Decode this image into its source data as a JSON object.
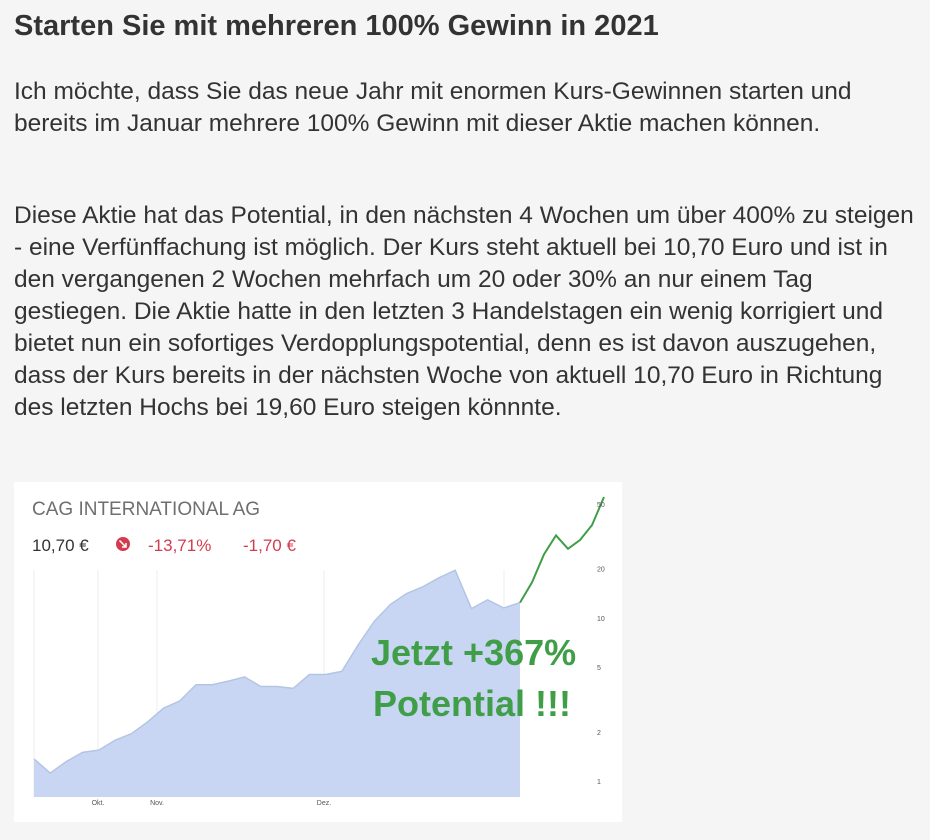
{
  "article": {
    "title": "Starten Sie mit mehreren 100% Gewinn in 2021",
    "paragraphs": [
      "Ich möchte, dass Sie das neue Jahr mit enormen Kurs-Gewinnen starten und bereits im Januar mehrere 100% Gewinn mit dieser Aktie machen können.",
      "Diese Aktie hat das Potential, in den nächsten 4 Wochen um über 400% zu steigen - eine Verfünffachung ist möglich. Der Kurs steht aktuell bei 10,70 Euro und ist in den vergangenen 2 Wochen mehrfach um 20 oder 30% an nur einem Tag gestiegen. Die Aktie hatte in den letzten 3 Handelstagen ein wenig korrigiert und bietet nun ein sofortiges Verdopplungspotential, denn es ist davon auszugehen, dass der Kurs bereits in der nächsten Woche von aktuell 10,70 Euro in Richtung des letzten Hochs bei 19,60 Euro steigen könnnte."
    ]
  },
  "chart_data": {
    "type": "area",
    "title": "CAG INTERNATIONAL AG",
    "price": "10,70 €",
    "change_pct": "-13,71%",
    "change_abs": "-1,70 €",
    "annotation_line1": "Jetzt +367%",
    "annotation_line2": "Potential !!!",
    "y_scale": "log",
    "ylim": [
      0.8,
      55
    ],
    "y_ticks": [
      1,
      2,
      5,
      10,
      20,
      50
    ],
    "x_ticks": [
      "Okt.",
      "Nov.",
      "Dez."
    ],
    "grid": true,
    "legend": "none",
    "colors": {
      "area_fill": "#c9d6f3",
      "area_line": "#b3c5e4",
      "projection_line": "#3f9e47",
      "annotation": "#3f9e47",
      "negative": "#d33b4f",
      "title": "#6f6f6f"
    },
    "series": [
      {
        "values": [
          1.37,
          1.12,
          1.32,
          1.5,
          1.55,
          1.78,
          1.95,
          2.3,
          2.8,
          3.1,
          3.9,
          3.9,
          4.1,
          4.35,
          3.8,
          3.8,
          3.7,
          4.5,
          4.5,
          4.7,
          6.8,
          9.5,
          12.1,
          14.1,
          15.5,
          17.6,
          19.6,
          11.4,
          12.9,
          11.5,
          12.4
        ]
      },
      {
        "values": [
          12.4,
          16.5,
          24.5,
          32,
          26.5,
          30,
          37,
          55
        ]
      }
    ]
  }
}
